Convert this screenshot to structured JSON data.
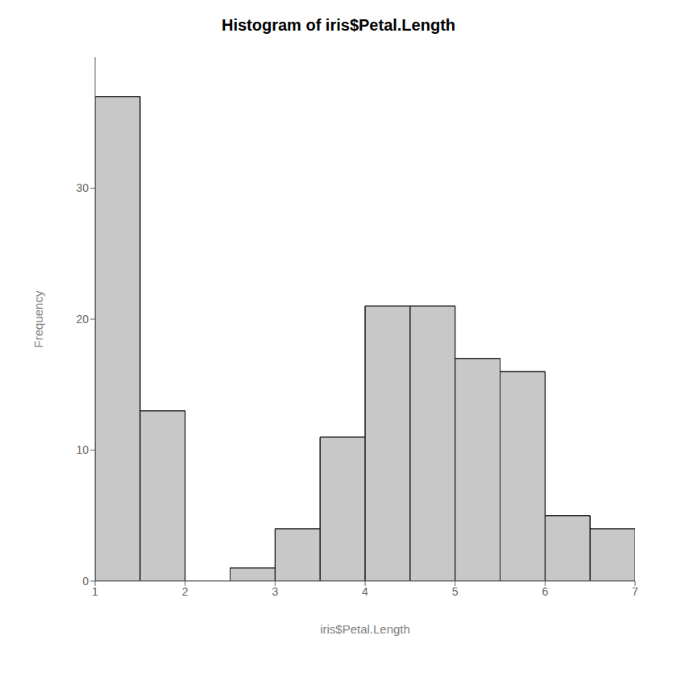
{
  "chart_data": {
    "type": "histogram",
    "title": "Histogram of iris$Petal.Length",
    "x_label": "iris$Petal.Length",
    "y_label": "Frequency",
    "bins": [
      1.0,
      1.5,
      2.0,
      2.5,
      3.0,
      3.5,
      4.0,
      4.5,
      5.0,
      5.5,
      6.0,
      6.5,
      7.0
    ],
    "values": [
      37,
      13,
      0,
      1,
      4,
      11,
      21,
      21,
      17,
      16,
      5,
      4
    ],
    "color": "#c8c8c8",
    "xlim": [
      1,
      7
    ],
    "xticks": [
      1,
      2,
      3,
      4,
      5,
      6,
      7
    ],
    "ylim": [
      0,
      40
    ],
    "yticks": [
      0,
      10,
      20,
      30
    ]
  }
}
